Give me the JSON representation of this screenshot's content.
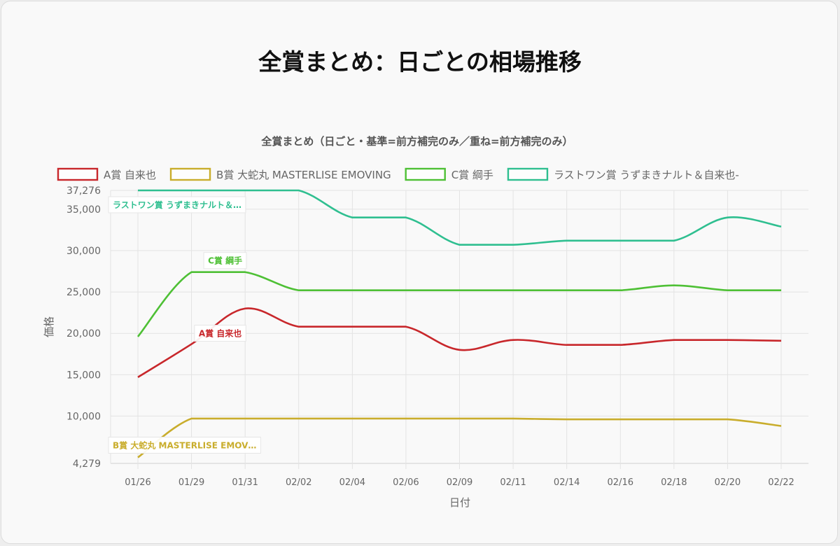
{
  "page": {
    "title": "全賞まとめ：日ごとの相場推移"
  },
  "chart_data": {
    "type": "line",
    "title": "全賞まとめ（日ごと・基準=前方補完のみ／重ね=前方補完のみ）",
    "xlabel": "日付",
    "ylabel": "価格",
    "ylim": [
      4279,
      37276
    ],
    "y_ticks": [
      4279,
      10000,
      15000,
      20000,
      25000,
      30000,
      35000,
      37276
    ],
    "y_tick_labels": [
      "4,279",
      "10,000",
      "15,000",
      "20,000",
      "25,000",
      "30,000",
      "35,000",
      "37,276"
    ],
    "categories": [
      "01/26",
      "01/29",
      "01/31",
      "02/02",
      "02/04",
      "02/06",
      "02/09",
      "02/11",
      "02/14",
      "02/16",
      "02/18",
      "02/20",
      "02/22"
    ],
    "grid": true,
    "legend_position": "top",
    "series": [
      {
        "name": "A賞 自来也",
        "label": "A賞 自来也",
        "color": "#c8272b",
        "label_anchor_index": 1,
        "values": [
          14700,
          18700,
          23000,
          20800,
          20800,
          20800,
          18000,
          19200,
          18600,
          18600,
          19200,
          19200,
          19100
        ]
      },
      {
        "name": "B賞 大蛇丸 MASTERLISE EMOVING",
        "label": "B賞 大蛇丸 MASTERLISE EMOV…",
        "color": "#c9ad2c",
        "label_anchor_index": 0,
        "values": [
          5000,
          9700,
          9700,
          9700,
          9700,
          9700,
          9700,
          9700,
          9600,
          9600,
          9600,
          9600,
          8800
        ]
      },
      {
        "name": "C賞 綱手",
        "label": "C賞 綱手",
        "color": "#4ec035",
        "label_anchor_index": 1,
        "values": [
          19600,
          27400,
          27400,
          25200,
          25200,
          25200,
          25200,
          25200,
          25200,
          25200,
          25800,
          25200,
          25200
        ]
      },
      {
        "name": "ラストワン賞 うずまきナルト＆自来也-",
        "label": "ラストワン賞 うずまきナルト＆…",
        "color": "#2fbf90",
        "label_anchor_index": 0,
        "values": [
          37276,
          37276,
          37276,
          37276,
          34000,
          34000,
          30700,
          30700,
          31200,
          31200,
          31200,
          34000,
          32900
        ]
      }
    ]
  }
}
